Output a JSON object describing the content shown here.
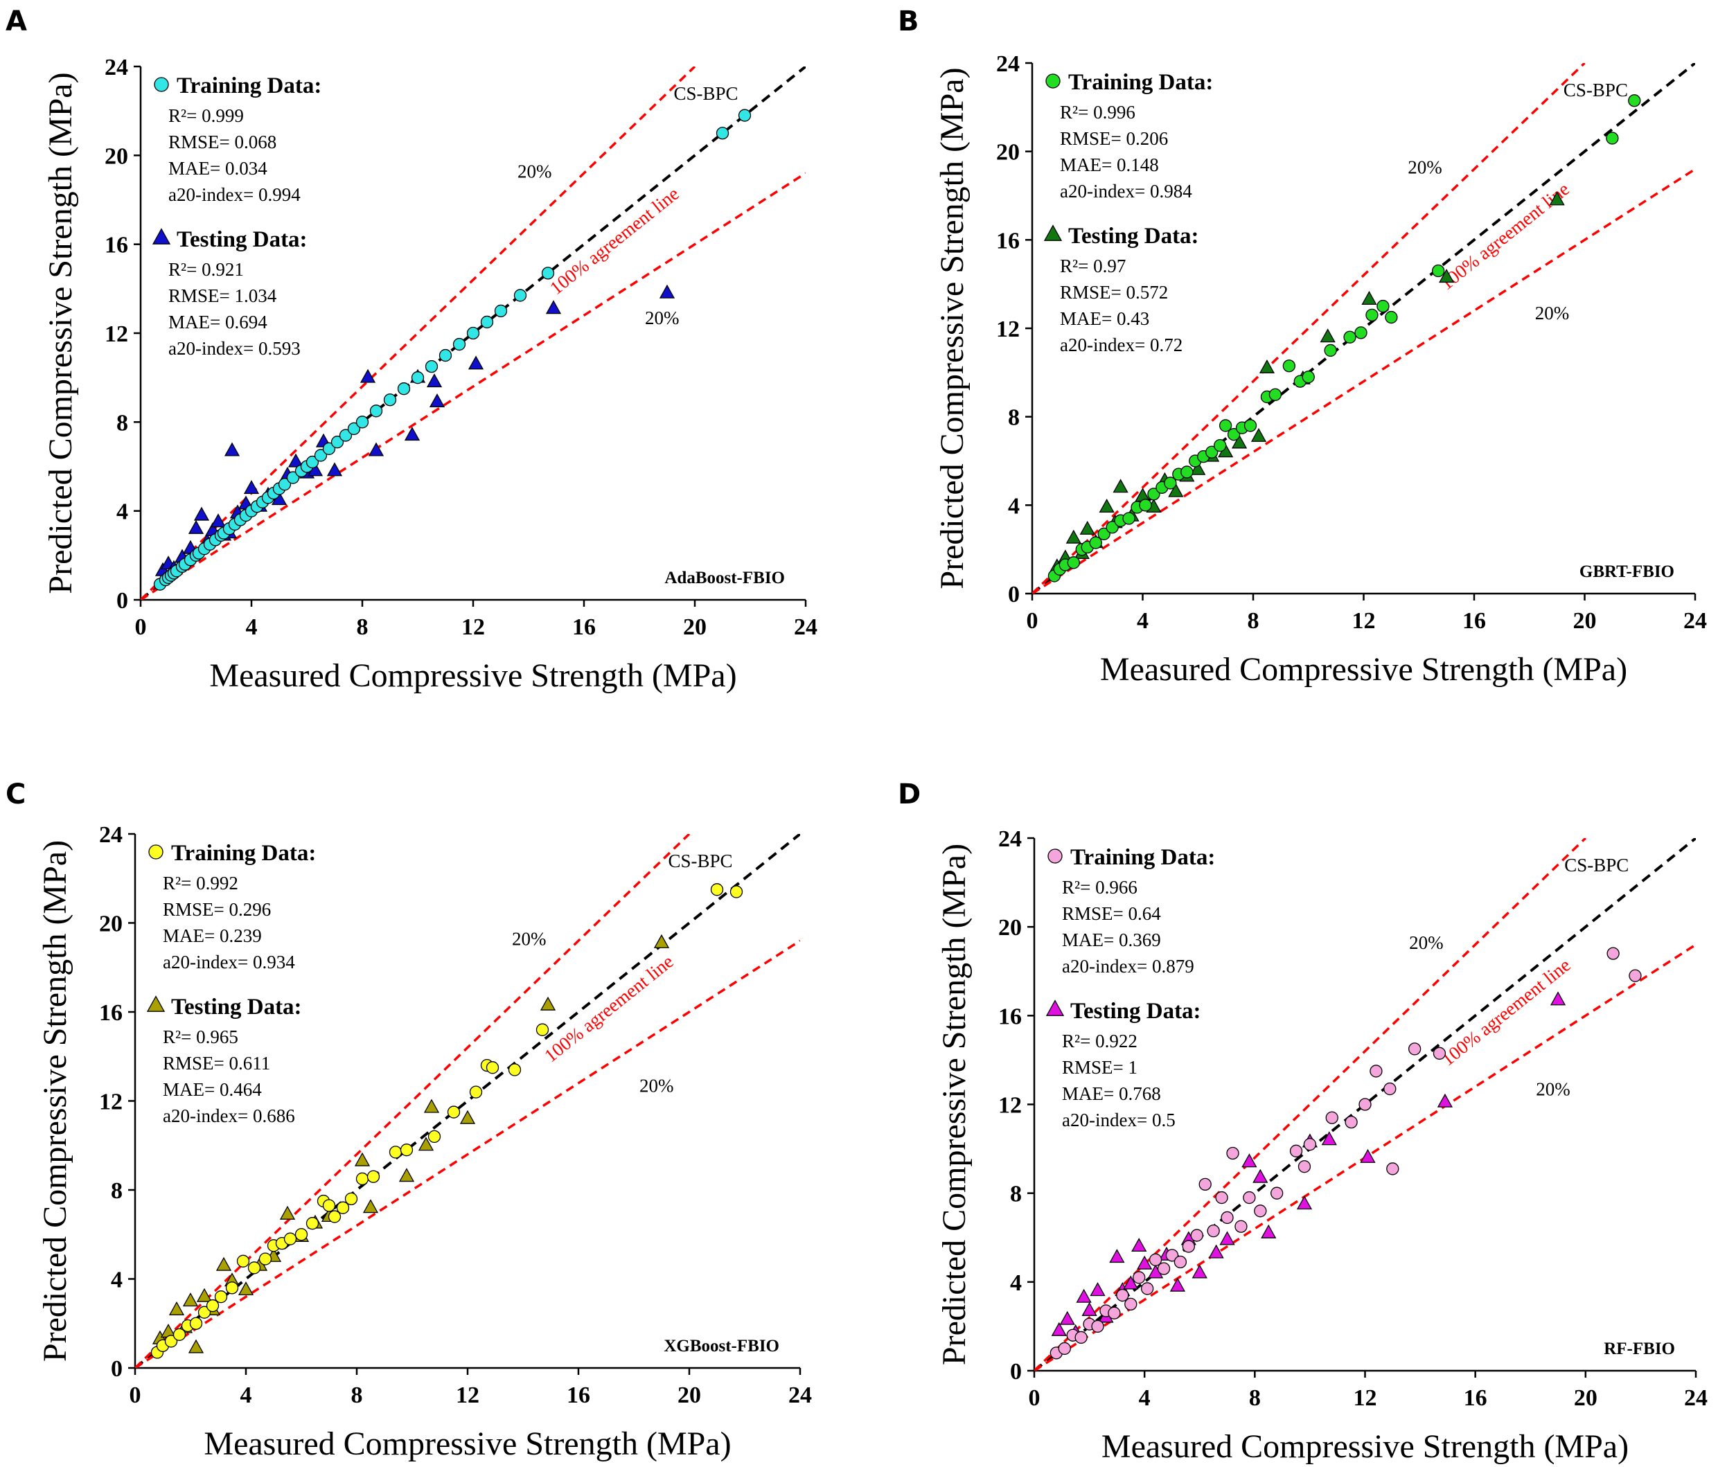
{
  "figure": {
    "xlabel": "Measured Compressive Strength (MPa)",
    "ylabel": "Predicted Compressive Strength (MPa)",
    "tick_labels": [
      "0",
      "4",
      "8",
      "12",
      "16",
      "20",
      "24"
    ],
    "line_labels": {
      "tolerance": "20%",
      "agreement": "100% agreement line",
      "dataset": "CS-BPC"
    },
    "colors": {
      "reference_line": "#000000",
      "tolerance_lines": "#ff0000",
      "marker_edge": "#000000"
    }
  },
  "chart_data": [
    {
      "panel": "A",
      "type": "scatter",
      "model": "AdaBoost-FBIO",
      "xlim": [
        0,
        24
      ],
      "ylim": [
        0,
        24
      ],
      "reference_lines": {
        "agreement_slope": 1,
        "upper_slope": 1.2,
        "lower_slope": 0.8
      },
      "train": {
        "label": "Training Data:",
        "color": "#33e6e6",
        "marker": "circle",
        "stats": [
          "R²= 0.999",
          "RMSE= 0.068",
          "MAE= 0.034",
          "a20-index= 0.994"
        ],
        "x": [
          0.7,
          0.9,
          1.0,
          1.1,
          1.2,
          1.3,
          1.5,
          1.6,
          1.8,
          2.0,
          2.1,
          2.3,
          2.5,
          2.7,
          2.9,
          3.0,
          3.2,
          3.4,
          3.6,
          3.8,
          4.0,
          4.2,
          4.4,
          4.6,
          4.8,
          5.0,
          5.2,
          5.5,
          5.8,
          6.0,
          6.2,
          6.5,
          6.8,
          7.1,
          7.4,
          7.7,
          8.0,
          8.5,
          9.0,
          9.5,
          10.0,
          10.5,
          11.0,
          11.5,
          12.0,
          12.5,
          13.0,
          13.7,
          14.7,
          21.0,
          21.8
        ],
        "y": [
          0.7,
          0.9,
          1.0,
          1.1,
          1.2,
          1.3,
          1.5,
          1.6,
          1.8,
          2.0,
          2.1,
          2.3,
          2.5,
          2.7,
          2.9,
          3.0,
          3.2,
          3.4,
          3.6,
          3.8,
          4.0,
          4.2,
          4.4,
          4.6,
          4.8,
          5.0,
          5.2,
          5.5,
          5.8,
          6.0,
          6.2,
          6.5,
          6.8,
          7.1,
          7.4,
          7.7,
          8.0,
          8.5,
          9.0,
          9.5,
          10.0,
          10.5,
          11.0,
          11.5,
          12.0,
          12.5,
          13.0,
          13.7,
          14.7,
          21.0,
          21.8
        ]
      },
      "test": {
        "label": "Testing Data:",
        "color": "#1010cc",
        "marker": "triangle",
        "stats": [
          "R²= 0.921",
          "RMSE= 1.034",
          "MAE= 0.694",
          "a20-index= 0.593"
        ],
        "x": [
          0.8,
          1.0,
          1.2,
          1.5,
          1.8,
          2.0,
          2.2,
          2.4,
          2.6,
          2.8,
          3.0,
          3.2,
          3.3,
          3.5,
          3.8,
          4.0,
          4.3,
          4.6,
          5.0,
          5.3,
          5.6,
          6.0,
          6.3,
          6.6,
          7.0,
          8.2,
          8.5,
          9.8,
          10.0,
          10.6,
          10.7,
          12.1,
          14.9,
          19.0
        ],
        "y": [
          1.3,
          1.6,
          1.4,
          1.9,
          2.3,
          3.2,
          3.8,
          2.6,
          3.1,
          3.5,
          2.9,
          3.0,
          6.7,
          3.9,
          4.3,
          5.0,
          4.2,
          4.7,
          4.5,
          5.6,
          6.2,
          5.7,
          5.8,
          7.1,
          5.8,
          10.0,
          6.7,
          7.4,
          10.0,
          9.8,
          8.9,
          10.6,
          13.1,
          13.8
        ]
      }
    },
    {
      "panel": "B",
      "type": "scatter",
      "model": "GBRT-FBIO",
      "xlim": [
        0,
        24
      ],
      "ylim": [
        0,
        24
      ],
      "reference_lines": {
        "agreement_slope": 1,
        "upper_slope": 1.2,
        "lower_slope": 0.8
      },
      "train": {
        "label": "Training Data:",
        "color": "#22dd22",
        "marker": "circle",
        "stats": [
          "R²= 0.996",
          "RMSE= 0.206",
          "MAE= 0.148",
          "a20-index= 0.984"
        ],
        "x": [
          0.8,
          1.0,
          1.2,
          1.5,
          1.8,
          2.0,
          2.3,
          2.6,
          2.9,
          3.2,
          3.5,
          3.8,
          4.1,
          4.4,
          4.7,
          5.0,
          5.3,
          5.6,
          5.9,
          6.2,
          6.5,
          6.8,
          7.0,
          7.3,
          7.6,
          7.9,
          8.5,
          8.8,
          9.3,
          9.7,
          10.0,
          10.8,
          11.5,
          11.9,
          12.3,
          12.7,
          13.0,
          14.7,
          21.0,
          21.8
        ],
        "y": [
          0.8,
          1.1,
          1.3,
          1.4,
          2.0,
          2.1,
          2.3,
          2.7,
          3.0,
          3.3,
          3.4,
          3.9,
          4.0,
          4.5,
          4.8,
          5.0,
          5.4,
          5.5,
          6.0,
          6.2,
          6.4,
          6.7,
          7.6,
          7.2,
          7.5,
          7.6,
          8.9,
          9.0,
          10.3,
          9.6,
          9.8,
          11.0,
          11.6,
          11.8,
          12.6,
          13.0,
          12.5,
          14.6,
          20.6,
          22.3
        ]
      },
      "test": {
        "label": "Testing Data:",
        "color": "#117711",
        "marker": "triangle",
        "stats": [
          "R²= 0.97",
          "RMSE= 0.572",
          "MAE= 0.43",
          "a20-index= 0.72"
        ],
        "x": [
          0.9,
          1.2,
          1.5,
          1.8,
          2.0,
          2.3,
          2.7,
          3.0,
          3.2,
          3.6,
          4.0,
          4.4,
          4.8,
          5.2,
          5.6,
          6.0,
          6.5,
          7.0,
          7.5,
          8.2,
          8.5,
          9.8,
          10.7,
          12.2,
          15.0,
          19.0
        ],
        "y": [
          1.2,
          1.6,
          2.5,
          1.8,
          2.9,
          2.3,
          3.9,
          3.2,
          4.8,
          3.5,
          4.4,
          3.9,
          5.1,
          4.6,
          5.3,
          5.6,
          6.2,
          6.4,
          6.8,
          7.1,
          10.2,
          9.7,
          11.6,
          13.3,
          14.3,
          17.8
        ]
      }
    },
    {
      "panel": "C",
      "type": "scatter",
      "model": "XGBoost-FBIO",
      "xlim": [
        0,
        24
      ],
      "ylim": [
        0,
        24
      ],
      "reference_lines": {
        "agreement_slope": 1,
        "upper_slope": 1.2,
        "lower_slope": 0.8
      },
      "train": {
        "label": "Training Data:",
        "color": "#ffff22",
        "marker": "circle",
        "stats": [
          "R²= 0.992",
          "RMSE= 0.296",
          "MAE= 0.239",
          "a20-index= 0.934"
        ],
        "x": [
          0.8,
          1.0,
          1.3,
          1.6,
          1.9,
          2.2,
          2.5,
          2.8,
          3.1,
          3.5,
          3.9,
          4.3,
          4.7,
          5.0,
          5.3,
          5.6,
          6.0,
          6.4,
          6.8,
          7.0,
          7.2,
          7.5,
          7.8,
          8.2,
          8.6,
          9.4,
          9.8,
          10.8,
          11.5,
          12.3,
          12.7,
          12.9,
          13.7,
          14.7,
          21.0,
          21.7
        ],
        "y": [
          0.7,
          1.0,
          1.2,
          1.5,
          1.9,
          2.0,
          2.5,
          2.8,
          3.2,
          3.6,
          4.8,
          4.5,
          4.9,
          5.5,
          5.6,
          5.8,
          6.0,
          6.5,
          7.5,
          7.3,
          6.8,
          7.2,
          7.6,
          8.5,
          8.6,
          9.7,
          9.8,
          10.4,
          11.5,
          12.4,
          13.6,
          13.5,
          13.4,
          15.2,
          21.5,
          21.4
        ]
      },
      "test": {
        "label": "Testing Data:",
        "color": "#aaa000",
        "marker": "triangle",
        "stats": [
          "R²= 0.965",
          "RMSE= 0.611",
          "MAE= 0.464",
          "a20-index= 0.686"
        ],
        "x": [
          0.9,
          1.2,
          1.5,
          1.8,
          2.0,
          2.2,
          2.5,
          2.8,
          3.2,
          3.5,
          4.0,
          4.5,
          5.0,
          5.5,
          6.0,
          6.5,
          7.0,
          8.2,
          8.5,
          9.8,
          10.5,
          10.7,
          12.0,
          14.9,
          19.0
        ],
        "y": [
          1.3,
          1.6,
          2.6,
          1.8,
          3.0,
          0.9,
          3.2,
          2.6,
          4.6,
          3.9,
          3.5,
          4.6,
          5.0,
          6.9,
          5.9,
          6.5,
          6.8,
          9.3,
          7.2,
          8.6,
          10.0,
          11.7,
          11.2,
          16.3,
          19.1
        ]
      }
    },
    {
      "panel": "D",
      "type": "scatter",
      "model": "RF-FBIO",
      "xlim": [
        0,
        24
      ],
      "ylim": [
        0,
        24
      ],
      "reference_lines": {
        "agreement_slope": 1,
        "upper_slope": 1.2,
        "lower_slope": 0.8
      },
      "train": {
        "label": "Training Data:",
        "color": "#f4a6dc",
        "marker": "circle",
        "stats": [
          "R²= 0.966",
          "RMSE= 0.64",
          "MAE= 0.369",
          "a20-index= 0.879"
        ],
        "x": [
          0.8,
          1.1,
          1.4,
          1.7,
          2.0,
          2.3,
          2.6,
          2.9,
          3.2,
          3.5,
          3.8,
          4.1,
          4.4,
          4.7,
          5.0,
          5.3,
          5.6,
          5.9,
          6.2,
          6.5,
          6.8,
          7.0,
          7.2,
          7.5,
          7.8,
          8.2,
          8.8,
          9.5,
          9.8,
          10.0,
          10.8,
          11.5,
          12.0,
          12.4,
          12.9,
          13.0,
          13.8,
          14.7,
          21.0,
          21.8
        ],
        "y": [
          0.8,
          1.0,
          1.6,
          1.5,
          2.1,
          2.0,
          2.7,
          2.6,
          3.4,
          3.0,
          4.2,
          3.7,
          5.0,
          4.6,
          5.2,
          4.9,
          5.6,
          6.1,
          8.4,
          6.3,
          7.8,
          6.9,
          9.8,
          6.5,
          7.8,
          7.2,
          8.0,
          9.9,
          9.2,
          10.2,
          11.4,
          11.2,
          12.0,
          13.5,
          12.7,
          9.1,
          14.5,
          14.3,
          18.8,
          17.8
        ]
      },
      "test": {
        "label": "Testing Data:",
        "color": "#e010e0",
        "marker": "triangle",
        "stats": [
          "R²= 0.922",
          "RMSE= 1",
          "MAE= 0.768",
          "a20-index= 0.5"
        ],
        "x": [
          0.9,
          1.2,
          1.5,
          1.8,
          2.0,
          2.3,
          2.6,
          3.0,
          3.2,
          3.5,
          3.8,
          4.0,
          4.4,
          4.8,
          5.2,
          5.6,
          6.0,
          6.6,
          7.0,
          7.8,
          8.2,
          8.5,
          9.8,
          10.0,
          10.7,
          12.1,
          14.9,
          19.0
        ],
        "y": [
          1.8,
          2.3,
          1.7,
          3.3,
          2.7,
          3.6,
          2.4,
          5.1,
          3.6,
          3.9,
          5.6,
          4.8,
          4.4,
          5.2,
          3.8,
          5.9,
          4.4,
          5.3,
          5.9,
          9.4,
          8.7,
          6.2,
          7.5,
          10.3,
          10.4,
          9.6,
          12.1,
          16.7
        ]
      }
    }
  ]
}
